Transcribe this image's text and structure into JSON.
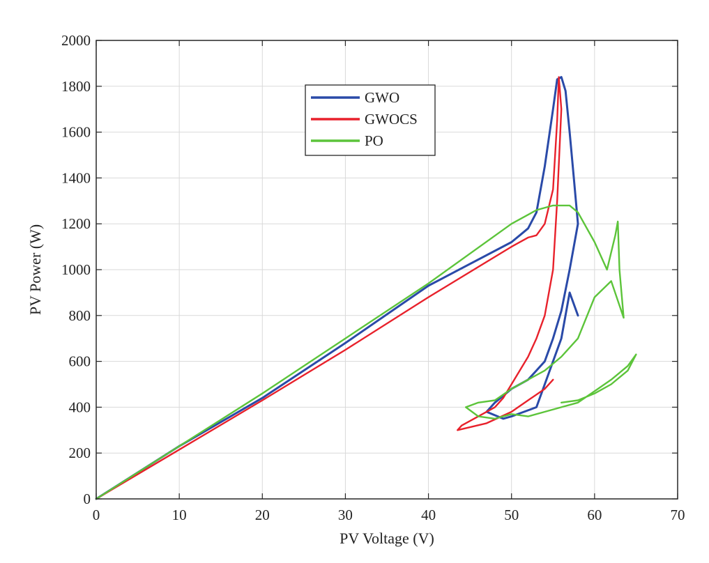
{
  "chart_data": {
    "type": "line",
    "title": "",
    "xlabel": "PV Voltage (V)",
    "ylabel": "PV Power (W)",
    "xlim": [
      0,
      70
    ],
    "ylim": [
      0,
      2000
    ],
    "xticks": [
      0,
      10,
      20,
      30,
      40,
      50,
      60,
      70
    ],
    "yticks": [
      0,
      200,
      400,
      600,
      800,
      1000,
      1200,
      1400,
      1600,
      1800,
      2000
    ],
    "grid": true,
    "legend": {
      "position": "top-center",
      "entries": [
        "GWO",
        "GWOCS",
        "PO"
      ]
    },
    "colors": {
      "GWO": "#2a4aa8",
      "GWOCS": "#e8212b",
      "PO": "#5cc43a",
      "grid": "#d9d9d9",
      "axis": "#262626"
    },
    "series": [
      {
        "name": "GWO",
        "x": [
          0,
          10,
          20,
          30,
          40,
          50,
          51,
          52,
          53,
          54,
          55,
          55.5,
          56,
          56.5,
          57,
          57.5,
          58,
          57,
          56,
          55,
          54,
          53,
          52,
          50,
          48,
          47,
          49,
          50,
          53,
          54,
          56,
          57,
          58
        ],
        "y": [
          0,
          230,
          440,
          680,
          930,
          1120,
          1150,
          1180,
          1250,
          1450,
          1700,
          1830,
          1840,
          1780,
          1600,
          1400,
          1200,
          1000,
          820,
          700,
          600,
          560,
          520,
          480,
          420,
          380,
          350,
          360,
          400,
          500,
          700,
          900,
          800
        ]
      },
      {
        "name": "GWOCS",
        "x": [
          0,
          10,
          20,
          30,
          40,
          50,
          52,
          53,
          54,
          55,
          55.5,
          55.7,
          56,
          55.5,
          55,
          54,
          53,
          52,
          51,
          50,
          49,
          48,
          46,
          44,
          43.5,
          47,
          50,
          52,
          54,
          55
        ],
        "y": [
          0,
          215,
          430,
          650,
          880,
          1100,
          1140,
          1150,
          1200,
          1350,
          1650,
          1840,
          1700,
          1300,
          1000,
          800,
          700,
          620,
          560,
          500,
          440,
          400,
          360,
          320,
          300,
          330,
          380,
          430,
          480,
          520
        ]
      },
      {
        "name": "PO",
        "x": [
          0,
          10,
          20,
          30,
          40,
          50,
          53,
          55,
          57,
          58,
          60,
          61.5,
          62.5,
          62.8,
          63,
          63.5,
          62,
          60,
          58,
          56,
          54,
          52,
          50,
          48,
          46,
          44.5,
          46,
          48,
          50,
          52,
          54,
          56,
          58,
          60,
          62,
          64,
          65,
          64,
          62,
          60,
          58,
          56
        ],
        "y": [
          0,
          230,
          460,
          700,
          940,
          1200,
          1260,
          1280,
          1280,
          1250,
          1120,
          1000,
          1150,
          1210,
          1000,
          790,
          950,
          880,
          700,
          620,
          560,
          520,
          480,
          430,
          420,
          400,
          360,
          350,
          370,
          360,
          380,
          400,
          420,
          470,
          520,
          580,
          630,
          560,
          500,
          460,
          430,
          420
        ]
      }
    ]
  }
}
